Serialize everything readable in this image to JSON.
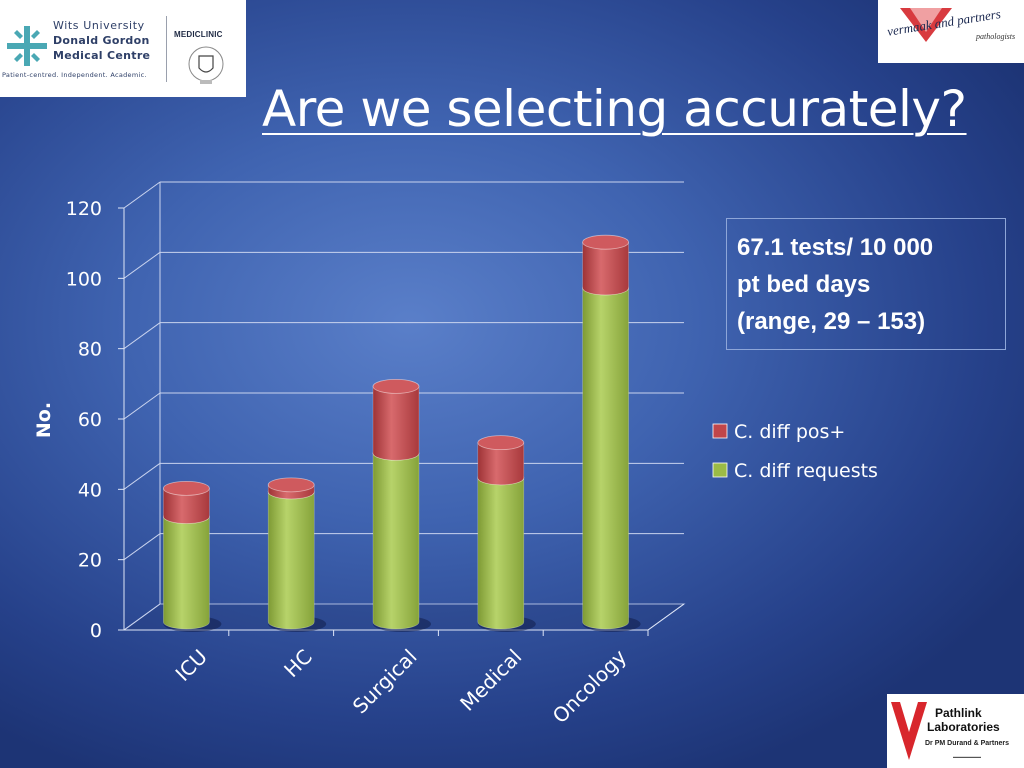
{
  "slide": {
    "title": "Are we selecting accurately?"
  },
  "logos": {
    "wits": {
      "line1": "Wits University",
      "line2": "Donald Gordon",
      "line3": "Medical Centre",
      "tagline": "Patient-centred. Independent. Academic.",
      "partner": "MEDICLINIC"
    },
    "vermaak": {
      "name": "vermaak and partners",
      "sub": "pathologists"
    },
    "pathlink": {
      "line1": "Pathlink",
      "line2": "Laboratories",
      "line3": "Dr PM Durand & Partners"
    }
  },
  "callout": {
    "line1": "67.1 tests/ 10 000",
    "line2": "pt bed days",
    "line3": "(range, 29 – 153)"
  },
  "colors": {
    "requests": "#9bbb46",
    "positive": "#c0464a"
  },
  "chart_data": {
    "type": "bar",
    "stacked": true,
    "style": "3d-cylinder",
    "categories": [
      "ICU",
      "HC",
      "Surgical",
      "Medical",
      "Oncology"
    ],
    "series": [
      {
        "name": "C. diff requests",
        "values": [
          30,
          37,
          48,
          41,
          95
        ]
      },
      {
        "name": "C. diff pos+",
        "values": [
          8,
          2,
          19,
          10,
          13
        ]
      }
    ],
    "ylabel": "No.",
    "ylim": [
      0,
      120
    ],
    "yticks": [
      0,
      20,
      40,
      60,
      80,
      100,
      120
    ],
    "grid": true,
    "legend_position": "right",
    "legend": [
      "C. diff pos+",
      "C. diff requests"
    ]
  }
}
